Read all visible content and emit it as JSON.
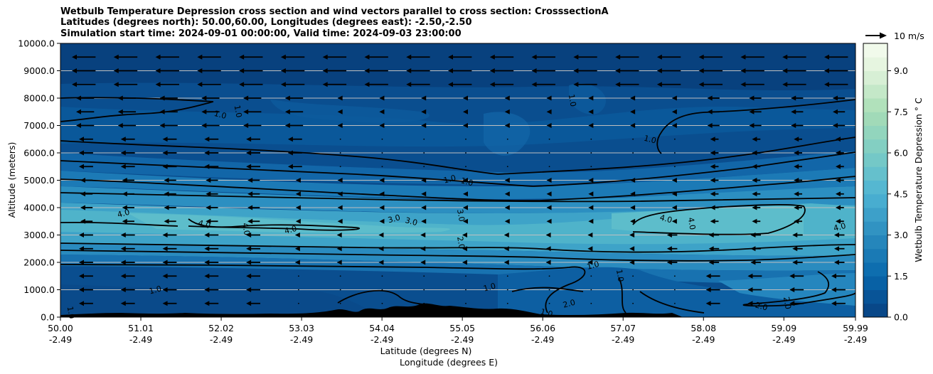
{
  "header": {
    "title_line1": "Wetbulb Temperature Depression cross section and wind vectors parallel to cross section: CrosssectionA",
    "title_line2": "Latitudes (degrees north): 50.00,60.00, Longitudes (degrees east): -2.50,-2.50",
    "title_line3": "Simulation start time: 2024-09-01 00:00:00, Valid time: 2024-09-03 23:00:00"
  },
  "chart_data": {
    "type": "heatmap",
    "title": "Wetbulb Temperature Depression cross section and wind vectors parallel to cross section: CrosssectionA",
    "ylabel": "Altitude (meters)",
    "xlabel_lat": "Latitude (degrees N)",
    "xlabel_lon": "Longitude (degrees E)",
    "ylim": [
      0,
      10000
    ],
    "xlim": [
      50.0,
      59.99
    ],
    "grid": "horizontal",
    "y_ticks": [
      "0.0",
      "1000.0",
      "2000.0",
      "3000.0",
      "4000.0",
      "5000.0",
      "6000.0",
      "7000.0",
      "8000.0",
      "9000.0",
      "10000.0"
    ],
    "x_ticks": [
      {
        "lat": "50.00",
        "lon": "-2.49"
      },
      {
        "lat": "51.01",
        "lon": "-2.49"
      },
      {
        "lat": "52.02",
        "lon": "-2.49"
      },
      {
        "lat": "53.03",
        "lon": "-2.49"
      },
      {
        "lat": "54.04",
        "lon": "-2.49"
      },
      {
        "lat": "55.05",
        "lon": "-2.49"
      },
      {
        "lat": "56.06",
        "lon": "-2.49"
      },
      {
        "lat": "57.07",
        "lon": "-2.49"
      },
      {
        "lat": "58.08",
        "lon": "-2.49"
      },
      {
        "lat": "59.09",
        "lon": "-2.49"
      },
      {
        "lat": "59.99",
        "lon": "-2.49"
      }
    ],
    "colorbar": {
      "label": "Wetbulb Temperature Depression $^\\circ$C",
      "label_display": "Wetbulb Temperature Depression ° C",
      "range": [
        0.0,
        10.0
      ],
      "ticks": [
        "0.0",
        "1.5",
        "3.0",
        "4.5",
        "6.0",
        "7.5",
        "9.0"
      ],
      "colormap": "GnBu_r",
      "levels": 20
    },
    "quiver_key": {
      "label": "10 m/s",
      "speed": 10
    },
    "contour_labels": [
      {
        "value": "1.0",
        "lat": 50.1,
        "alt": 150
      },
      {
        "value": "1.0",
        "lat": 51.2,
        "alt": 900
      },
      {
        "value": "1.0",
        "lat": 52.0,
        "alt": 7300
      },
      {
        "value": "1.0",
        "lat": 52.2,
        "alt": 7500
      },
      {
        "value": "1.0",
        "lat": 55.4,
        "alt": 1000
      },
      {
        "value": "1.0",
        "lat": 56.1,
        "alt": 60
      },
      {
        "value": "1.0",
        "lat": 57.0,
        "alt": 1500
      },
      {
        "value": "1.0",
        "lat": 56.7,
        "alt": 1800
      },
      {
        "value": "1.0",
        "lat": 57.4,
        "alt": 6400
      },
      {
        "value": "1.0",
        "lat": 56.4,
        "alt": 7900
      },
      {
        "value": "1.0",
        "lat": 54.9,
        "alt": 4950
      },
      {
        "value": "1.0",
        "lat": 55.1,
        "alt": 4850
      },
      {
        "value": "2.0",
        "lat": 55.0,
        "alt": 2700
      },
      {
        "value": "2.0",
        "lat": 56.4,
        "alt": 400
      },
      {
        "value": "2.0",
        "lat": 58.8,
        "alt": 300
      },
      {
        "value": "2.0",
        "lat": 59.1,
        "alt": 500
      },
      {
        "value": "3.0",
        "lat": 54.2,
        "alt": 3500
      },
      {
        "value": "3.0",
        "lat": 54.4,
        "alt": 3400
      },
      {
        "value": "3.0",
        "lat": 55.0,
        "alt": 3700
      },
      {
        "value": "4.0",
        "lat": 50.8,
        "alt": 3700
      },
      {
        "value": "4.0",
        "lat": 51.8,
        "alt": 3300
      },
      {
        "value": "4.0",
        "lat": 52.3,
        "alt": 3200
      },
      {
        "value": "4.0",
        "lat": 52.9,
        "alt": 3100
      },
      {
        "value": "4.0",
        "lat": 57.6,
        "alt": 3500
      },
      {
        "value": "4.0",
        "lat": 57.9,
        "alt": 3400
      },
      {
        "value": "4.0",
        "lat": 59.8,
        "alt": 3200
      }
    ]
  }
}
